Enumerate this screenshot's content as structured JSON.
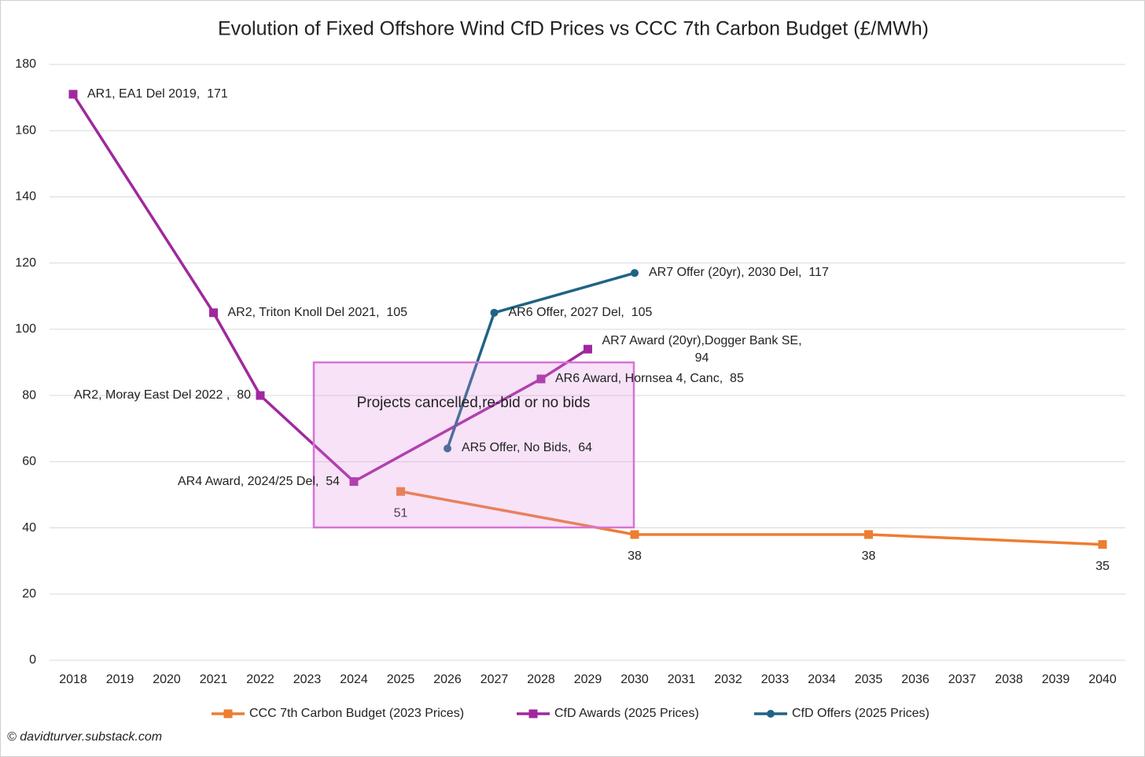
{
  "chart_data": {
    "type": "line",
    "title": "Evolution of Fixed Offshore Wind CfD Prices vs CCC 7th Carbon Budget (£/MWh)",
    "xlim": [
      2018,
      2040
    ],
    "xticks": [
      2018,
      2019,
      2020,
      2021,
      2022,
      2023,
      2024,
      2025,
      2026,
      2027,
      2028,
      2029,
      2030,
      2031,
      2032,
      2033,
      2034,
      2035,
      2036,
      2037,
      2038,
      2039,
      2040
    ],
    "ylim": [
      0,
      180
    ],
    "yticks": [
      0,
      20,
      40,
      60,
      80,
      100,
      120,
      140,
      160,
      180
    ],
    "grid": true,
    "legend": "bottom",
    "series": [
      {
        "name": "CCC 7th Carbon Budget (2023 Prices)",
        "color": "#ed7d31",
        "marker": "square",
        "x": [
          2025,
          2030,
          2035,
          2040
        ],
        "values": [
          51,
          38,
          38,
          35
        ]
      },
      {
        "name": "CfD Awards (2025 Prices)",
        "color": "#a0289e",
        "marker": "square",
        "x": [
          2018,
          2021,
          2022,
          2024,
          2028,
          2029
        ],
        "values": [
          171,
          105,
          80,
          54,
          85,
          94
        ],
        "value_labels": [
          "AR1, EA1 Del 2019,  171",
          "AR2, Triton Knoll Del 2021,  105",
          "AR2, Moray East Del 2022 ,  80",
          "AR4 Award, 2024/25 Del,  54",
          "AR6 Award, Hornsea 4, Canc,  85",
          "AR7 Award (20yr),Dogger Bank SE,\n94"
        ]
      },
      {
        "name": "CfD Offers (2025 Prices)",
        "color": "#1f6485",
        "marker": "circle",
        "x": [
          2026,
          2027,
          2030
        ],
        "values": [
          64,
          105,
          117
        ],
        "value_labels": [
          "AR5 Offer, No Bids,  64",
          "AR6 Offer, 2027 Del,  105",
          "AR7 Offer (20yr), 2030 Del,  117"
        ]
      }
    ],
    "annotation": "Projects cancelled,re-bid or no bids",
    "credit": "© davidturver.substack.com"
  }
}
